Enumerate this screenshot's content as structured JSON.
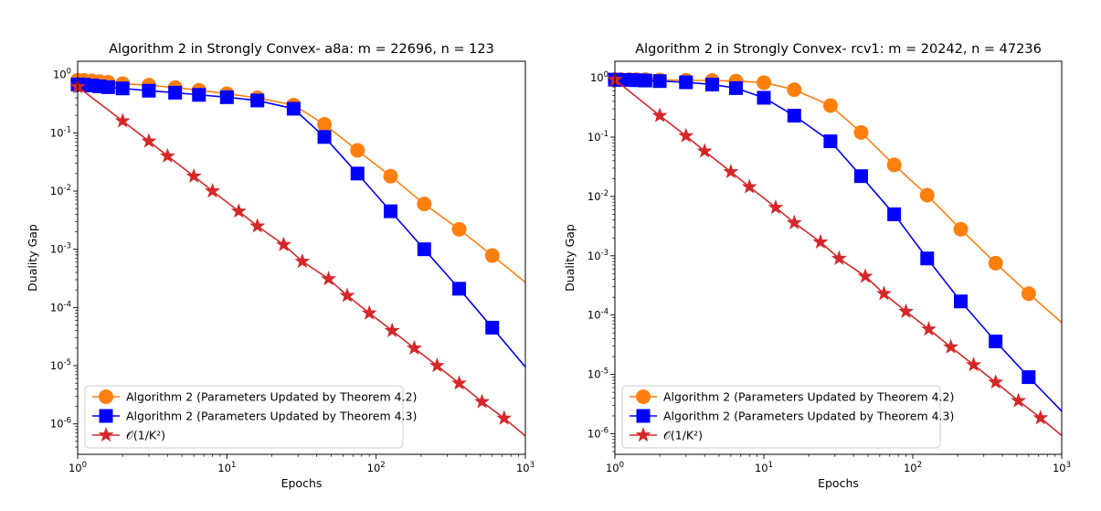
{
  "figure": {
    "panels": [
      {
        "title": "Algorithm 2 in Strongly Convex- a8a: m = 22696, n = 123",
        "xlabel": "Epochs",
        "ylabel": "Duality Gap"
      },
      {
        "title": "Algorithm 2 in Strongly Convex- rcv1: m = 20242, n = 47236",
        "xlabel": "Epochs",
        "ylabel": "Duality Gap"
      }
    ],
    "legend": {
      "entries": [
        "Algorithm 2 (Parameters Updated by Theorem 4.2)",
        "Algorithm 2 (Parameters Updated by Theorem 4.3)",
        "𝒪(1/K²)"
      ]
    }
  },
  "chart_data": [
    {
      "type": "line",
      "title": "Algorithm 2 in Strongly Convex- a8a: m = 22696, n = 123",
      "xlabel": "Epochs",
      "ylabel": "Duality Gap",
      "xscale": "log",
      "yscale": "log",
      "xlim": [
        1,
        1000
      ],
      "ylim": [
        3e-07,
        1.7
      ],
      "legend_position": "lower-left",
      "grid": false,
      "series": [
        {
          "name": "Algorithm 2 (Parameters Updated by Theorem 4.2)",
          "color": "#ff7f0e",
          "marker": "circle",
          "x": [
            1,
            1.1,
            1.25,
            1.4,
            1.6,
            2,
            3,
            4.5,
            6.5,
            10,
            16,
            28,
            45,
            75,
            125,
            210,
            360,
            600,
            1000
          ],
          "y": [
            0.8,
            0.8,
            0.78,
            0.76,
            0.74,
            0.7,
            0.66,
            0.6,
            0.54,
            0.47,
            0.4,
            0.3,
            0.14,
            0.05,
            0.018,
            0.006,
            0.0022,
            0.00078,
            0.00027
          ]
        },
        {
          "name": "Algorithm 2 (Parameters Updated by Theorem 4.3)",
          "color": "#0000ff",
          "marker": "square",
          "x": [
            1,
            1.1,
            1.25,
            1.4,
            1.6,
            2,
            3,
            4.5,
            6.5,
            10,
            16,
            28,
            45,
            75,
            125,
            210,
            360,
            600,
            1000
          ],
          "y": [
            0.68,
            0.67,
            0.65,
            0.63,
            0.61,
            0.58,
            0.53,
            0.49,
            0.45,
            0.41,
            0.36,
            0.26,
            0.085,
            0.02,
            0.0045,
            0.001,
            0.00021,
            4.5e-05,
            9.5e-06
          ]
        },
        {
          "name": "𝒪(1/K²)",
          "color": "#d62728",
          "marker": "star",
          "x": [
            1,
            2,
            3,
            4,
            6,
            8,
            12,
            16,
            24,
            32,
            48,
            64,
            90,
            128,
            180,
            256,
            360,
            512,
            720,
            1000
          ],
          "y": [
            0.62,
            0.16,
            0.072,
            0.04,
            0.018,
            0.01,
            0.0045,
            0.0025,
            0.0012,
            0.00062,
            0.00031,
            0.00016,
            8e-05,
            4e-05,
            2e-05,
            1e-05,
            5e-06,
            2.4e-06,
            1.25e-06,
            6.2e-07
          ]
        }
      ]
    },
    {
      "type": "line",
      "title": "Algorithm 2 in Strongly Convex- rcv1: m = 20242, n = 47236",
      "xlabel": "Epochs",
      "ylabel": "Duality Gap",
      "xscale": "log",
      "yscale": "log",
      "xlim": [
        1,
        1000
      ],
      "ylim": [
        4.5e-07,
        1.9
      ],
      "legend_position": "lower-left",
      "grid": false,
      "series": [
        {
          "name": "Algorithm 2 (Parameters Updated by Theorem 4.2)",
          "color": "#ff7f0e",
          "marker": "circle",
          "x": [
            1,
            1.1,
            1.25,
            1.4,
            1.6,
            2,
            3,
            4.5,
            6.5,
            10,
            16,
            28,
            45,
            75,
            125,
            210,
            360,
            600,
            1000
          ],
          "y": [
            0.93,
            0.93,
            0.93,
            0.93,
            0.93,
            0.92,
            0.91,
            0.9,
            0.88,
            0.83,
            0.63,
            0.34,
            0.12,
            0.034,
            0.0105,
            0.0028,
            0.00075,
            0.00023,
            7.5e-05
          ]
        },
        {
          "name": "Algorithm 2 (Parameters Updated by Theorem 4.3)",
          "color": "#0000ff",
          "marker": "square",
          "x": [
            1,
            1.1,
            1.25,
            1.4,
            1.6,
            2,
            3,
            4.5,
            6.5,
            10,
            16,
            28,
            45,
            75,
            125,
            210,
            360,
            600,
            1000
          ],
          "y": [
            0.93,
            0.92,
            0.92,
            0.91,
            0.9,
            0.88,
            0.84,
            0.77,
            0.67,
            0.46,
            0.23,
            0.085,
            0.022,
            0.005,
            0.0009,
            0.00017,
            3.6e-05,
            9e-06,
            2.4e-06
          ]
        },
        {
          "name": "𝒪(1/K²)",
          "color": "#d62728",
          "marker": "star",
          "x": [
            1,
            2,
            3,
            4,
            6,
            8,
            12,
            16,
            24,
            32,
            48,
            64,
            90,
            128,
            180,
            256,
            360,
            512,
            720,
            1000
          ],
          "y": [
            0.93,
            0.23,
            0.105,
            0.058,
            0.026,
            0.0145,
            0.0065,
            0.0036,
            0.0017,
            0.0009,
            0.00045,
            0.00023,
            0.000115,
            5.8e-05,
            2.9e-05,
            1.45e-05,
            7.4e-06,
            3.6e-06,
            1.85e-06,
            9.3e-07
          ]
        }
      ]
    }
  ]
}
